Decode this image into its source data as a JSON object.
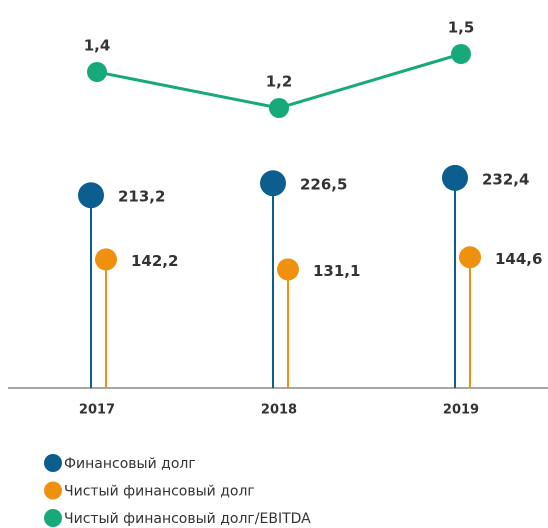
{
  "chart_data": {
    "type": "lollipop",
    "categories": [
      "2017",
      "2018",
      "2019"
    ],
    "series": [
      {
        "name": "Финансовый долг",
        "color": "#0b5e8e",
        "values": [
          213.2,
          226.5,
          232.4
        ],
        "value_labels": [
          "213,2",
          "226,5",
          "232,4"
        ]
      },
      {
        "name": "Чистый финансовый долг",
        "color": "#f0900f",
        "values": [
          142.2,
          131.1,
          144.6
        ],
        "value_labels": [
          "142,2",
          "131,1",
          "144,6"
        ]
      },
      {
        "name": "Чистый финансовый долг/EBITDA",
        "color": "#17a97a",
        "axis": "y2",
        "values": [
          1.4,
          1.2,
          1.5
        ],
        "value_labels": [
          "1,4",
          "1,2",
          "1,5"
        ]
      }
    ],
    "ylim": [
      0,
      240
    ],
    "y2lim": [
      1,
      1.6
    ]
  }
}
